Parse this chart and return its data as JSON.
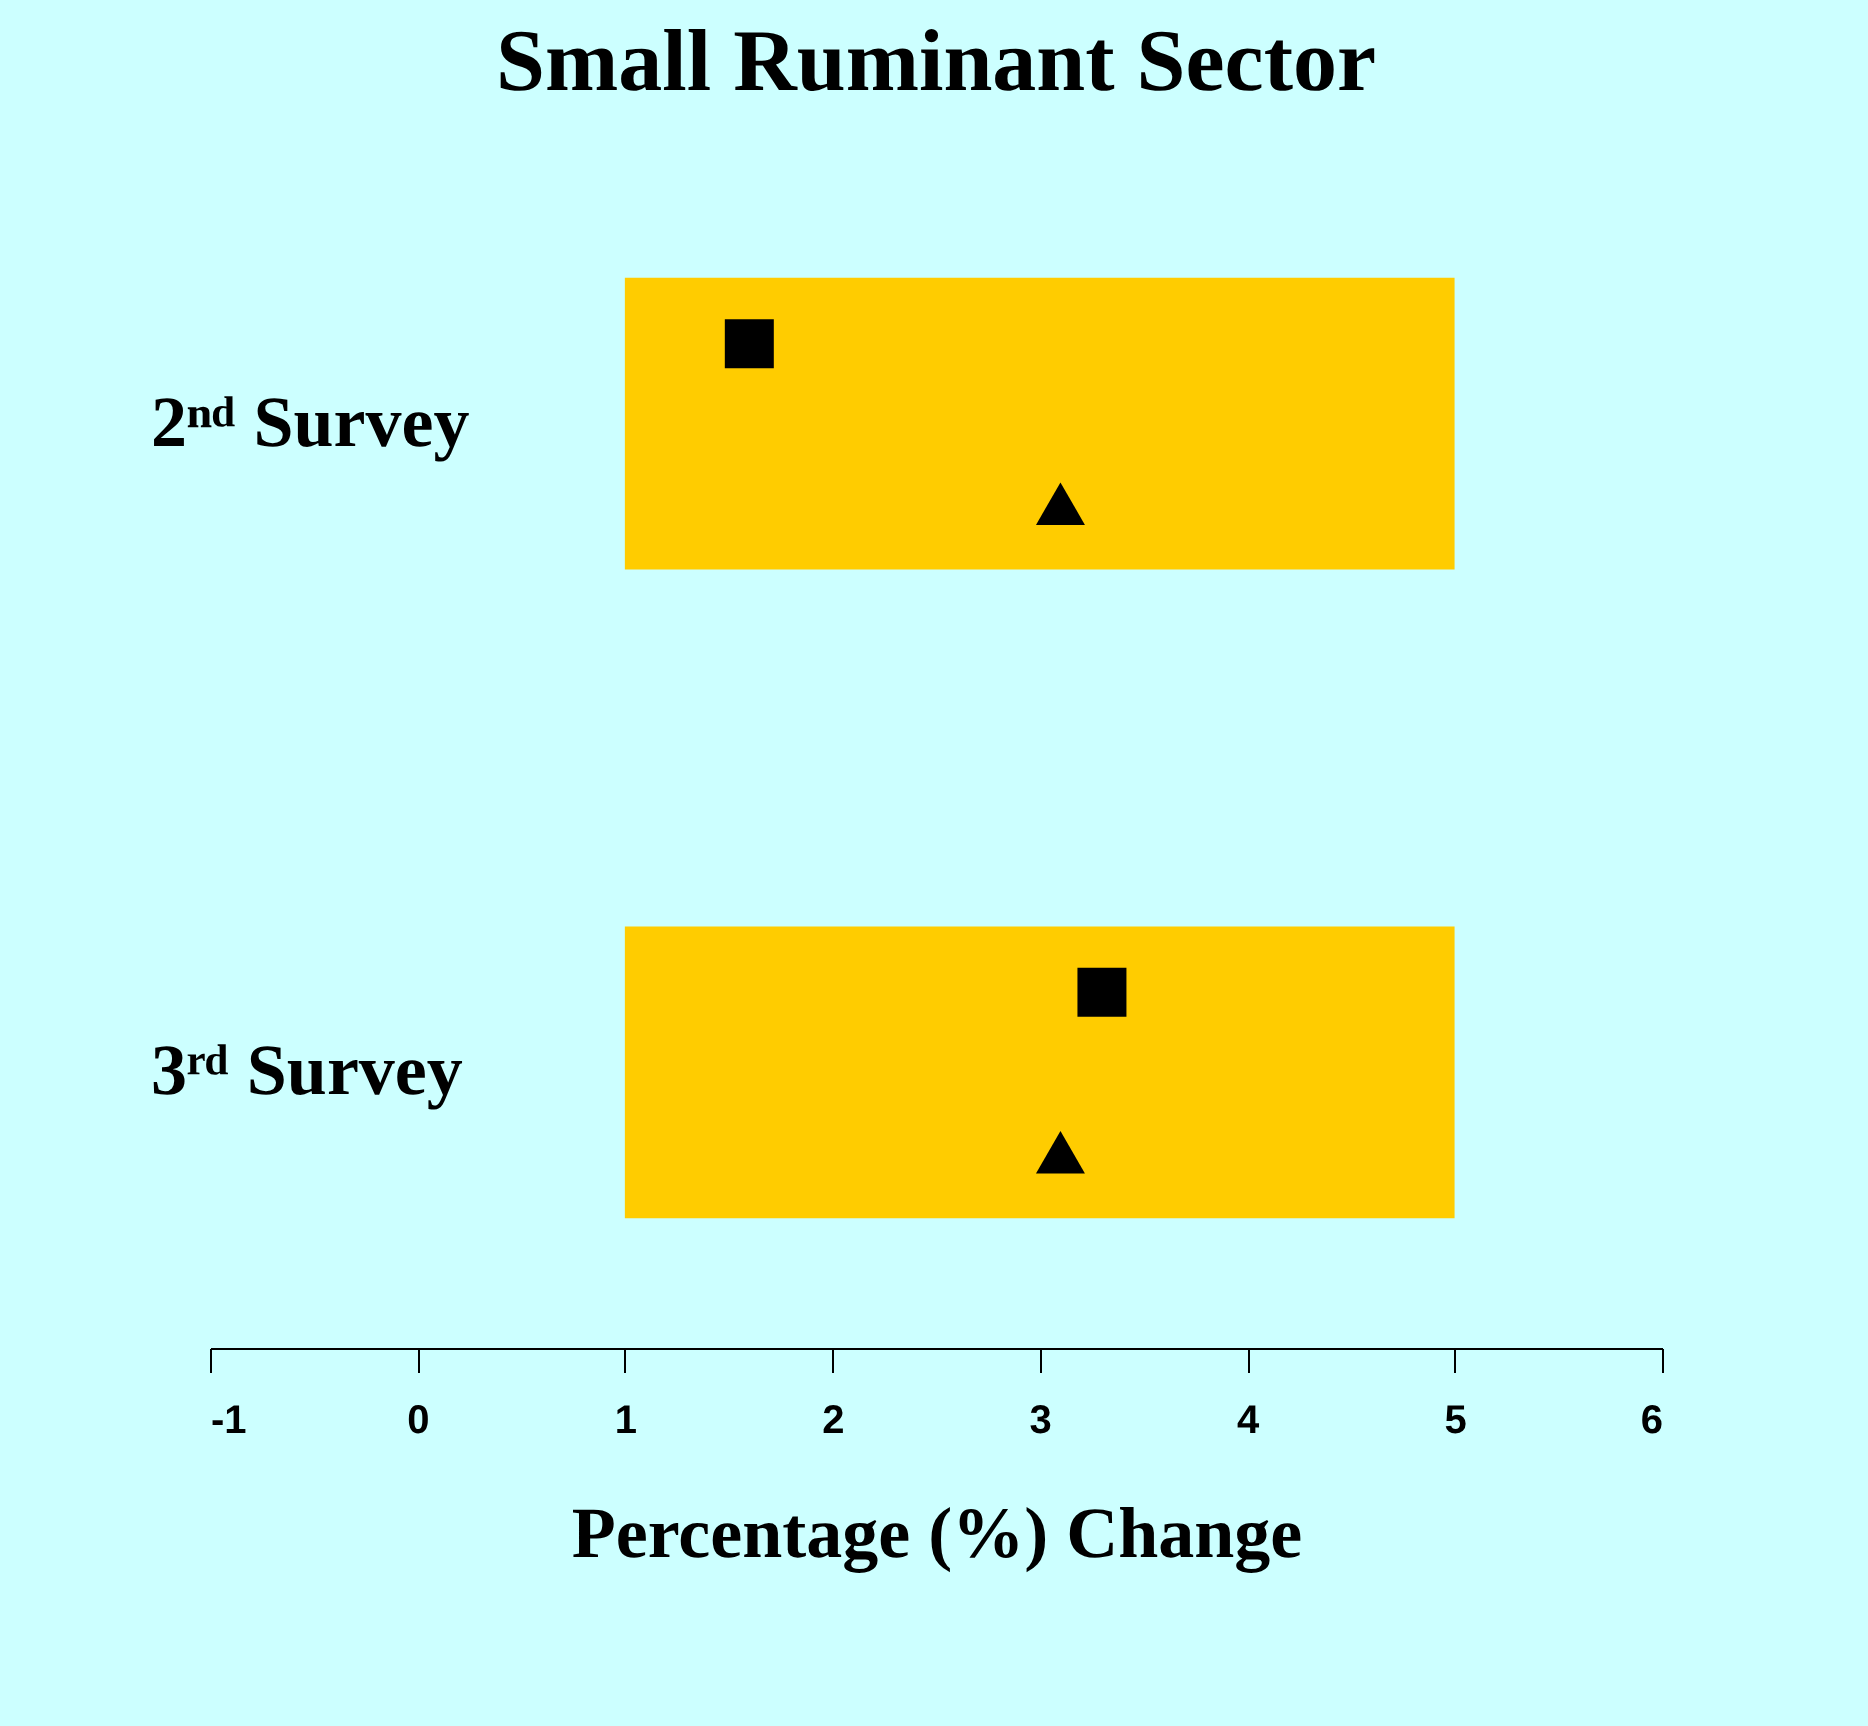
{
  "chart_data": {
    "type": "bar",
    "orientation": "horizontal",
    "title": "Small Ruminant Sector",
    "xlabel": "Percentage (%) Change",
    "categories": [
      "2ⁿᵈ Survey",
      "3ʳᵈ Survey"
    ],
    "series": [
      {
        "type": "bar",
        "color": "#ffcc00",
        "base": [
          1,
          1
        ],
        "values": [
          4,
          4
        ]
      },
      {
        "type": "scatter",
        "marker": "square",
        "color": "#000000",
        "values": [
          1.6,
          3.3
        ]
      },
      {
        "type": "scatter",
        "marker": "triangle",
        "color": "#000000",
        "values": [
          3.1,
          3.1
        ]
      }
    ],
    "xlim": [
      -1,
      6
    ],
    "xticks": [
      -1,
      0,
      1,
      2,
      3,
      4,
      5,
      6
    ],
    "grid": false
  }
}
